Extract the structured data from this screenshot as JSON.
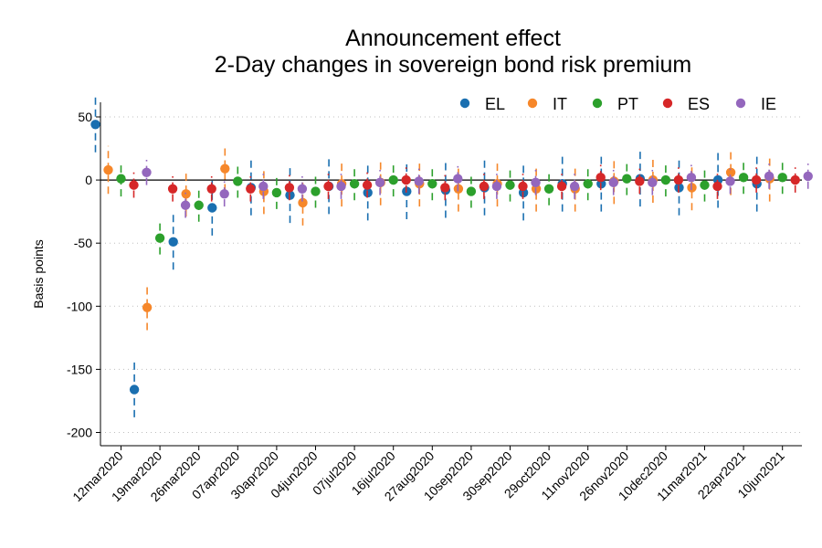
{
  "chart_data": {
    "type": "scatter",
    "title_lines": [
      "Announcement effect",
      "2-Day changes in sovereign bond risk premium"
    ],
    "xlabel": "",
    "ylabel": "Basis points",
    "ylim": [
      -200,
      55
    ],
    "yticks": [
      50,
      0,
      -50,
      -100,
      -150,
      -200
    ],
    "ytick_labels": [
      "50",
      "0",
      "-50",
      "-100",
      "-150",
      "-200"
    ],
    "grid": true,
    "zero_line": true,
    "legend_position": "top-right",
    "categories": [
      "12mar2020",
      "19mar2020",
      "26mar2020",
      "07apr2020",
      "30apr2020",
      "04jun2020",
      "07jul2020",
      "16jul2020",
      "27aug2020",
      "10sep2020",
      "30sep2020",
      "29oct2020",
      "11nov2020",
      "26nov2020",
      "10dec2020",
      "11mar2021",
      "22apr2021",
      "10jun2021"
    ],
    "series": [
      {
        "name": "EL",
        "color": "#1a6fb0",
        "values": [
          44,
          -166,
          -49,
          -22,
          -6,
          -12,
          -5,
          -10,
          -9,
          -8,
          -6,
          -10,
          -3,
          -3,
          1,
          -6,
          0,
          -3
        ],
        "ci_low": [
          22,
          -188,
          -71,
          -44,
          -28,
          -34,
          -27,
          -32,
          -31,
          -30,
          -28,
          -32,
          -25,
          -25,
          -21,
          -28,
          -22,
          -25
        ],
        "ci_high": [
          66,
          -144,
          -27,
          0,
          16,
          10,
          17,
          12,
          13,
          14,
          16,
          12,
          19,
          19,
          23,
          16,
          22,
          19
        ]
      },
      {
        "name": "IT",
        "color": "#f6872a",
        "values": [
          8,
          -101,
          -11,
          9,
          -9,
          -18,
          -3,
          -2,
          -3,
          -7,
          -3,
          -7,
          -7,
          -1,
          0,
          -6,
          6,
          1
        ],
        "ci_low": [
          -11,
          -119,
          -29,
          -9,
          -27,
          -36,
          -21,
          -20,
          -21,
          -25,
          -21,
          -25,
          -25,
          -19,
          -18,
          -24,
          -12,
          -17
        ],
        "ci_high": [
          27,
          -83,
          7,
          27,
          9,
          0,
          15,
          16,
          15,
          11,
          15,
          11,
          11,
          17,
          18,
          12,
          24,
          19
        ]
      },
      {
        "name": "PT",
        "color": "#2ca02c",
        "values": [
          1,
          -46,
          -20,
          -1,
          -10,
          -9,
          -3,
          0,
          -3,
          -9,
          -4,
          -7,
          -3,
          1,
          0,
          -4,
          2,
          2
        ],
        "ci_low": [
          -13,
          -59,
          -33,
          -14,
          -23,
          -22,
          -16,
          -13,
          -16,
          -22,
          -17,
          -20,
          -16,
          -12,
          -13,
          -17,
          -11,
          -11
        ],
        "ci_high": [
          15,
          -33,
          -7,
          12,
          3,
          4,
          10,
          13,
          10,
          4,
          9,
          6,
          10,
          14,
          13,
          9,
          15,
          15
        ]
      },
      {
        "name": "ES",
        "color": "#d62728",
        "values": [
          -4,
          -7,
          -7,
          -7,
          -6,
          -5,
          -4,
          0,
          -6,
          -5,
          -5,
          -5,
          2,
          -1,
          0,
          -5,
          0,
          0
        ],
        "ci_low": [
          -14,
          -17,
          -17,
          -17,
          -16,
          -15,
          -14,
          -10,
          -16,
          -15,
          -15,
          -15,
          -8,
          -11,
          -10,
          -15,
          -10,
          -10
        ],
        "ci_high": [
          6,
          3,
          3,
          3,
          4,
          5,
          6,
          10,
          4,
          5,
          5,
          5,
          12,
          9,
          10,
          5,
          10,
          10
        ]
      },
      {
        "name": "IE",
        "color": "#9467bd",
        "values": [
          6,
          -20,
          -11,
          -5,
          -7,
          -5,
          -2,
          -1,
          1,
          -5,
          -2,
          -5,
          -2,
          -2,
          2,
          -1,
          3,
          3
        ],
        "ci_low": [
          -4,
          -30,
          -21,
          -15,
          -17,
          -15,
          -12,
          -11,
          -9,
          -15,
          -12,
          -15,
          -12,
          -12,
          -8,
          -11,
          -7,
          -7
        ],
        "ci_high": [
          16,
          -10,
          -1,
          5,
          3,
          5,
          8,
          9,
          11,
          5,
          8,
          5,
          8,
          8,
          12,
          9,
          13,
          13
        ]
      }
    ]
  }
}
